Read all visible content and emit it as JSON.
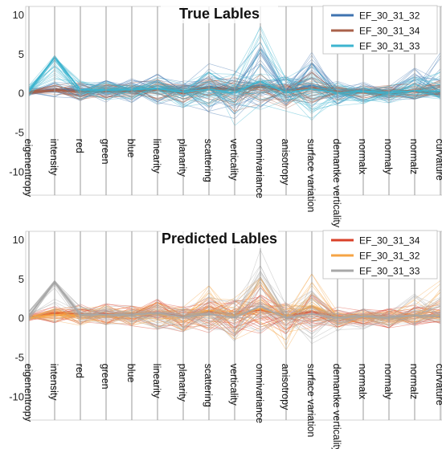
{
  "chart_data": [
    {
      "type": "line",
      "title": "True Lables",
      "ylim": [
        -13,
        11
      ],
      "yticks": [
        10,
        5,
        0,
        -5,
        -10
      ],
      "legend_position": "top-right",
      "grid": false,
      "categories": [
        "eigenentropy",
        "intensity",
        "red",
        "green",
        "blue",
        "linearity",
        "planarity",
        "scattering",
        "verticality",
        "omnivariance",
        "anisotropy",
        "surface variation",
        "demantke verticality",
        "normalx",
        "normaly",
        "normalz",
        "curvature"
      ],
      "series": [
        {
          "name": "EF_30_31_32",
          "color": "#3f73b0",
          "values": [
            0.0,
            0.5,
            0.3,
            0.3,
            0.3,
            0.6,
            0.2,
            0.8,
            0.4,
            1.0,
            0.3,
            1.0,
            0.1,
            0.2,
            0.0,
            0.3,
            0.1
          ],
          "upper": [
            0.6,
            1.4,
            1.9,
            1.9,
            1.9,
            2.6,
            1.6,
            4.5,
            3.0,
            7.0,
            2.5,
            5.8,
            1.6,
            1.4,
            1.2,
            3.5,
            5.2
          ],
          "lower": [
            -0.4,
            -0.6,
            -1.3,
            -1.3,
            -1.3,
            -1.6,
            -2.5,
            -2.5,
            -3.5,
            -2.0,
            -2.5,
            -2.0,
            -1.6,
            -1.2,
            -1.3,
            -1.0,
            -0.8
          ]
        },
        {
          "name": "EF_30_31_34",
          "color": "#a9614a",
          "values": [
            0.1,
            0.3,
            0.2,
            0.2,
            0.2,
            0.4,
            0.0,
            0.6,
            0.3,
            0.8,
            0.2,
            0.7,
            0.1,
            0.1,
            0.0,
            0.2,
            0.1
          ],
          "upper": [
            0.5,
            1.0,
            1.4,
            1.4,
            1.4,
            1.8,
            1.0,
            2.5,
            2.0,
            4.0,
            1.5,
            3.0,
            1.0,
            1.0,
            1.0,
            1.8,
            2.0
          ],
          "lower": [
            -0.3,
            -0.4,
            -1.0,
            -1.0,
            -1.0,
            -1.0,
            -1.5,
            -1.5,
            -2.5,
            -1.5,
            -2.0,
            -1.5,
            -1.0,
            -1.0,
            -1.0,
            -0.8,
            -0.5
          ]
        },
        {
          "name": "EF_30_31_33",
          "color": "#3cb4cf",
          "values": [
            0.3,
            4.5,
            0.4,
            0.4,
            0.4,
            0.6,
            0.1,
            0.5,
            0.0,
            1.5,
            0.0,
            0.5,
            0.0,
            0.2,
            0.0,
            0.3,
            0.2
          ],
          "upper": [
            1.0,
            4.8,
            1.6,
            1.6,
            1.6,
            2.0,
            1.2,
            2.8,
            2.5,
            9.5,
            2.0,
            4.0,
            1.4,
            1.2,
            1.0,
            2.5,
            3.0
          ],
          "lower": [
            -0.5,
            -0.8,
            -1.0,
            -1.0,
            -1.0,
            -1.5,
            -2.0,
            -2.0,
            -4.3,
            -2.5,
            -3.5,
            -3.5,
            -1.8,
            -1.5,
            -1.4,
            -1.2,
            -0.8
          ]
        }
      ]
    },
    {
      "type": "line",
      "title": "Predicted Lables",
      "ylim": [
        -13,
        11
      ],
      "yticks": [
        10,
        5,
        0,
        -5,
        -10
      ],
      "legend_position": "top-right",
      "grid": false,
      "categories": [
        "eigenentropy",
        "intensity",
        "red",
        "green",
        "blue",
        "linearity",
        "planarity",
        "scattering",
        "verticality",
        "omnivariance",
        "anisotropy",
        "surface variation",
        "demantke verticality",
        "normalx",
        "normaly",
        "normalz",
        "curvature"
      ],
      "series": [
        {
          "name": "EF_30_31_34",
          "color": "#d9412a",
          "values": [
            0.1,
            0.6,
            0.5,
            0.5,
            0.5,
            0.6,
            0.2,
            0.8,
            0.4,
            1.0,
            0.3,
            0.8,
            0.1,
            0.2,
            0.0,
            0.3,
            0.1
          ],
          "upper": [
            0.6,
            1.5,
            1.9,
            1.9,
            1.9,
            2.5,
            1.5,
            2.8,
            2.5,
            5.0,
            2.0,
            3.0,
            1.5,
            1.2,
            1.2,
            2.0,
            2.5
          ],
          "lower": [
            -0.4,
            -0.8,
            -1.3,
            -1.3,
            -1.3,
            -1.6,
            -2.5,
            -2.0,
            -3.0,
            -2.0,
            -2.5,
            -2.0,
            -1.5,
            -1.2,
            -1.3,
            -1.0,
            -0.8
          ]
        },
        {
          "name": "EF_30_31_32",
          "color": "#f5a445",
          "values": [
            0.0,
            0.4,
            0.3,
            0.3,
            0.3,
            0.5,
            0.1,
            1.0,
            0.3,
            1.2,
            0.2,
            1.5,
            0.1,
            0.1,
            0.0,
            0.3,
            0.3
          ],
          "upper": [
            0.5,
            1.2,
            1.6,
            1.6,
            1.6,
            2.2,
            1.4,
            4.5,
            2.8,
            6.0,
            2.0,
            5.8,
            1.4,
            1.2,
            1.0,
            2.5,
            5.0
          ],
          "lower": [
            -0.3,
            -0.6,
            -1.0,
            -1.0,
            -1.0,
            -1.4,
            -2.2,
            -2.2,
            -3.5,
            -2.0,
            -4.3,
            -2.0,
            -1.4,
            -1.0,
            -1.0,
            -0.8,
            -0.6
          ]
        },
        {
          "name": "EF_30_31_33",
          "color": "#a8a8a8",
          "values": [
            0.3,
            4.5,
            0.4,
            0.4,
            0.4,
            0.6,
            0.1,
            0.5,
            0.0,
            1.5,
            0.0,
            0.5,
            0.0,
            0.2,
            0.0,
            0.3,
            0.2
          ],
          "upper": [
            1.0,
            4.8,
            1.6,
            1.6,
            1.6,
            2.0,
            1.2,
            2.8,
            2.5,
            9.0,
            2.0,
            4.0,
            1.4,
            1.2,
            1.0,
            3.5,
            3.0
          ],
          "lower": [
            -0.5,
            -0.8,
            -1.0,
            -1.0,
            -1.0,
            -1.5,
            -2.0,
            -2.0,
            -4.3,
            -2.5,
            -3.5,
            -3.5,
            -1.8,
            -1.5,
            -1.4,
            -1.2,
            -0.8
          ]
        }
      ]
    }
  ]
}
